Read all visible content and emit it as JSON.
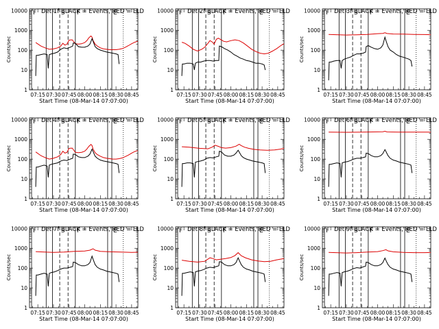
{
  "chart_data": {
    "type": "line",
    "layout": "3x3 grid of panels",
    "xlabel": "Start Time (08-Mar-14 07:07:00)",
    "ylabel": "Counts/sec",
    "x_tick_labels": [
      "07:15",
      "07:30",
      "07:45",
      "08:00",
      "08:15",
      "08:30",
      "08:45"
    ],
    "x_tick_minutes": [
      15,
      30,
      45,
      60,
      75,
      90,
      105
    ],
    "x_range_minutes": [
      7,
      111
    ],
    "y_tick_labels": [
      "1",
      "10",
      "100",
      "1000",
      "10000"
    ],
    "y_tick_values": [
      1,
      10,
      100,
      1000,
      10000
    ],
    "ylim": [
      1,
      12000
    ],
    "y_scale": "log",
    "series_colors": {
      "events": "#000000",
      "lld": "#dd0000"
    },
    "markers": [
      {
        "label": "F",
        "minute": 9,
        "style": "solid"
      },
      {
        "label": "",
        "minute": 23,
        "style": "solid"
      },
      {
        "label": "",
        "minute": 29,
        "style": "solid"
      },
      {
        "label": "S",
        "minute": 36,
        "style": "dashed"
      },
      {
        "label": "",
        "minute": 44,
        "style": "dashed"
      },
      {
        "label": "F",
        "minute": 51,
        "style": "solid"
      },
      {
        "label": "",
        "minute": 82,
        "style": "solid"
      },
      {
        "label": "E",
        "minute": 86,
        "style": "solid"
      },
      {
        "label": "",
        "minute": 97,
        "style": "dotted"
      }
    ],
    "panels": [
      {
        "title": "Det 1f BLACK = Events, RED = LLD",
        "events_x": [
          13,
          13.5,
          15,
          18,
          21,
          24,
          25,
          26,
          28,
          31,
          34,
          37,
          40,
          43,
          46,
          48.5,
          49,
          51,
          54,
          57,
          60,
          63,
          65,
          67,
          68,
          70,
          72,
          75,
          78,
          81,
          84,
          87,
          90,
          92,
          93
        ],
        "events_y": [
          5,
          55,
          55,
          60,
          65,
          60,
          12,
          60,
          65,
          70,
          80,
          110,
          130,
          120,
          140,
          160,
          230,
          220,
          150,
          140,
          140,
          160,
          200,
          380,
          280,
          150,
          120,
          100,
          90,
          80,
          75,
          70,
          65,
          60,
          20
        ],
        "lld_x": [
          13,
          18,
          22,
          26,
          30,
          34,
          37,
          39,
          41,
          43,
          45,
          48,
          51,
          54,
          57,
          60,
          62,
          64,
          66,
          67,
          68,
          69,
          70,
          72,
          75,
          78,
          81,
          84,
          87,
          90,
          93,
          96,
          99,
          102,
          105,
          108,
          111
        ],
        "lld_y": [
          240,
          160,
          130,
          110,
          115,
          130,
          160,
          220,
          180,
          200,
          320,
          330,
          210,
          200,
          210,
          240,
          300,
          420,
          520,
          450,
          300,
          250,
          200,
          160,
          130,
          115,
          110,
          105,
          105,
          105,
          110,
          120,
          140,
          170,
          210,
          250,
          280
        ]
      },
      {
        "title": "Det 2f BLACK = Events, RED = LLD",
        "events_x": [
          13,
          13.5,
          15,
          18,
          21,
          24,
          25,
          26,
          28,
          31,
          34,
          37,
          40,
          43,
          46,
          48.5,
          49,
          51,
          54,
          57,
          60,
          63,
          66,
          69,
          72,
          75,
          78,
          81,
          84,
          87,
          90,
          92,
          93
        ],
        "events_y": [
          5,
          20,
          20,
          22,
          22,
          20,
          10,
          22,
          25,
          25,
          28,
          30,
          30,
          28,
          30,
          30,
          160,
          150,
          120,
          100,
          80,
          60,
          50,
          40,
          35,
          30,
          28,
          25,
          22,
          22,
          20,
          18,
          10
        ],
        "lld_x": [
          13,
          16,
          20,
          24,
          28,
          32,
          35,
          38,
          40,
          42,
          44,
          46,
          48,
          50,
          53,
          56,
          60,
          64,
          68,
          72,
          76,
          80,
          84,
          88,
          92,
          96,
          100,
          104,
          108,
          111
        ],
        "lld_y": [
          250,
          220,
          160,
          110,
          90,
          110,
          140,
          220,
          300,
          260,
          200,
          350,
          400,
          350,
          280,
          260,
          300,
          330,
          300,
          230,
          160,
          110,
          85,
          70,
          65,
          70,
          90,
          120,
          170,
          210
        ]
      },
      {
        "title": "Det 3f BLACK = Events, RED = LLD",
        "events_x": [
          13,
          13.5,
          15,
          18,
          21,
          24,
          25,
          26,
          28,
          31,
          34,
          37,
          40,
          43,
          46,
          48.5,
          49,
          51,
          54,
          57,
          60,
          63,
          65,
          67,
          68,
          70,
          72,
          75,
          78,
          81,
          84,
          87,
          90,
          92,
          93
        ],
        "events_y": [
          3,
          25,
          25,
          28,
          30,
          30,
          12,
          30,
          35,
          40,
          45,
          55,
          65,
          65,
          70,
          80,
          150,
          170,
          140,
          120,
          110,
          130,
          180,
          450,
          300,
          150,
          100,
          80,
          60,
          50,
          45,
          40,
          35,
          30,
          15
        ],
        "lld_x": [
          13,
          20,
          30,
          40,
          50,
          60,
          65,
          67,
          69,
          75,
          85,
          95,
          105,
          111
        ],
        "lld_y": [
          620,
          600,
          580,
          590,
          620,
          680,
          700,
          750,
          690,
          650,
          640,
          620,
          610,
          600
        ]
      },
      {
        "title": "Det 4f BLACK = Events, RED = LLD",
        "events_x": [
          13,
          13.5,
          15,
          18,
          21,
          24,
          25,
          26,
          28,
          31,
          34,
          37,
          40,
          43,
          46,
          48.5,
          49,
          51,
          54,
          57,
          60,
          63,
          65,
          67,
          68,
          70,
          72,
          75,
          78,
          81,
          84,
          87,
          90,
          92,
          93
        ],
        "events_y": [
          4,
          40,
          40,
          45,
          50,
          45,
          12,
          50,
          55,
          60,
          65,
          80,
          90,
          85,
          100,
          110,
          180,
          170,
          130,
          120,
          120,
          140,
          180,
          320,
          240,
          140,
          110,
          90,
          80,
          75,
          70,
          65,
          60,
          55,
          20
        ],
        "lld_x": [
          13,
          18,
          22,
          26,
          30,
          34,
          37,
          39,
          41,
          43,
          45,
          48,
          51,
          54,
          57,
          60,
          62,
          64,
          66,
          67,
          68,
          69,
          70,
          72,
          75,
          78,
          81,
          84,
          87,
          90,
          93,
          96,
          99,
          102,
          105,
          108,
          111
        ],
        "lld_y": [
          230,
          150,
          120,
          100,
          110,
          130,
          170,
          250,
          200,
          220,
          350,
          360,
          220,
          210,
          220,
          250,
          320,
          440,
          550,
          480,
          320,
          260,
          210,
          170,
          140,
          120,
          110,
          105,
          100,
          100,
          105,
          115,
          135,
          160,
          200,
          240,
          270
        ]
      },
      {
        "title": "Det 5f BLACK = Events, RED = LLD",
        "events_x": [
          13,
          13.5,
          15,
          18,
          21,
          24,
          25,
          26,
          28,
          31,
          34,
          37,
          40,
          43,
          46,
          48.5,
          49,
          51,
          54,
          57,
          60,
          63,
          65,
          67,
          68,
          70,
          72,
          75,
          78,
          81,
          84,
          87,
          90,
          92,
          93
        ],
        "events_y": [
          4,
          60,
          60,
          65,
          65,
          60,
          12,
          70,
          75,
          80,
          90,
          110,
          120,
          115,
          130,
          140,
          250,
          230,
          160,
          140,
          140,
          160,
          200,
          280,
          230,
          150,
          120,
          100,
          90,
          80,
          75,
          70,
          65,
          60,
          20
        ],
        "lld_x": [
          13,
          20,
          30,
          38,
          42,
          45,
          48,
          51,
          55,
          60,
          65,
          68,
          70,
          73,
          77,
          82,
          88,
          95,
          102,
          108,
          111
        ],
        "lld_y": [
          420,
          400,
          350,
          330,
          400,
          500,
          440,
          380,
          360,
          380,
          450,
          560,
          480,
          400,
          350,
          310,
          290,
          280,
          290,
          320,
          350
        ]
      },
      {
        "title": "Det 6f BLACK = Events, RED = LLD",
        "events_x": [
          13,
          13.5,
          15,
          18,
          21,
          24,
          25,
          26,
          28,
          31,
          34,
          37,
          40,
          43,
          46,
          48.5,
          49,
          51,
          54,
          57,
          60,
          63,
          65,
          67,
          68,
          70,
          72,
          75,
          78,
          81,
          84,
          87,
          90,
          92,
          93
        ],
        "events_y": [
          4,
          55,
          55,
          60,
          65,
          60,
          12,
          65,
          70,
          75,
          85,
          100,
          110,
          110,
          120,
          130,
          200,
          190,
          150,
          130,
          130,
          150,
          190,
          300,
          240,
          150,
          110,
          90,
          80,
          70,
          65,
          60,
          55,
          50,
          20
        ],
        "lld_x": [
          13,
          30,
          45,
          55,
          65,
          67,
          69,
          80,
          95,
          111
        ],
        "lld_y": [
          2300,
          2250,
          2300,
          2350,
          2400,
          2550,
          2350,
          2300,
          2300,
          2300
        ]
      },
      {
        "title": "Det 7f BLACK = Events, RED = LLD",
        "events_x": [
          13,
          13.5,
          15,
          18,
          21,
          24,
          25,
          26,
          28,
          31,
          34,
          37,
          40,
          43,
          46,
          48.5,
          49,
          51,
          54,
          57,
          60,
          63,
          65,
          67,
          68,
          70,
          72,
          75,
          78,
          81,
          84,
          87,
          90,
          92,
          93
        ],
        "events_y": [
          4,
          45,
          45,
          50,
          55,
          50,
          12,
          55,
          60,
          65,
          75,
          90,
          100,
          100,
          110,
          120,
          200,
          190,
          150,
          130,
          130,
          150,
          190,
          400,
          280,
          150,
          110,
          90,
          80,
          70,
          65,
          60,
          55,
          50,
          20
        ],
        "lld_x": [
          13,
          20,
          30,
          40,
          50,
          60,
          65,
          68,
          70,
          75,
          85,
          95,
          105,
          111
        ],
        "lld_y": [
          680,
          650,
          620,
          640,
          700,
          720,
          800,
          950,
          800,
          700,
          660,
          640,
          620,
          630
        ]
      },
      {
        "title": "Det 8f BLACK = Events, RED = LLD",
        "events_x": [
          13,
          13.5,
          15,
          18,
          21,
          24,
          25,
          26,
          28,
          31,
          34,
          37,
          40,
          43,
          46,
          48.5,
          49,
          51,
          54,
          57,
          60,
          63,
          65,
          67,
          68,
          70,
          72,
          75,
          78,
          81,
          84,
          87,
          90,
          92,
          93
        ],
        "events_y": [
          4,
          55,
          55,
          60,
          65,
          60,
          12,
          65,
          70,
          75,
          85,
          100,
          110,
          105,
          120,
          130,
          210,
          200,
          150,
          130,
          130,
          150,
          190,
          330,
          250,
          150,
          110,
          90,
          80,
          70,
          65,
          60,
          55,
          50,
          20
        ],
        "lld_x": [
          13,
          20,
          28,
          35,
          40,
          43,
          46,
          50,
          55,
          60,
          64,
          67,
          70,
          74,
          80,
          86,
          92,
          98,
          104,
          111
        ],
        "lld_y": [
          250,
          220,
          200,
          220,
          330,
          300,
          260,
          280,
          300,
          340,
          430,
          600,
          420,
          330,
          260,
          230,
          210,
          220,
          260,
          300
        ]
      },
      {
        "title": "Det 9f BLACK = Events, RED = LLD",
        "events_x": [
          13,
          13.5,
          15,
          18,
          21,
          24,
          25,
          26,
          28,
          31,
          34,
          37,
          40,
          43,
          46,
          48.5,
          49,
          51,
          54,
          57,
          60,
          63,
          65,
          67,
          68,
          70,
          72,
          75,
          78,
          81,
          84,
          87,
          90,
          92,
          93
        ],
        "events_y": [
          4,
          50,
          50,
          55,
          60,
          55,
          12,
          60,
          65,
          70,
          80,
          95,
          105,
          100,
          115,
          125,
          200,
          190,
          150,
          130,
          130,
          150,
          190,
          320,
          240,
          150,
          110,
          90,
          80,
          70,
          65,
          60,
          55,
          50,
          20
        ],
        "lld_x": [
          13,
          20,
          30,
          40,
          50,
          60,
          65,
          68,
          70,
          75,
          85,
          95,
          105,
          111
        ],
        "lld_y": [
          620,
          600,
          580,
          600,
          640,
          680,
          760,
          850,
          740,
          660,
          620,
          600,
          600,
          610
        ]
      }
    ]
  }
}
